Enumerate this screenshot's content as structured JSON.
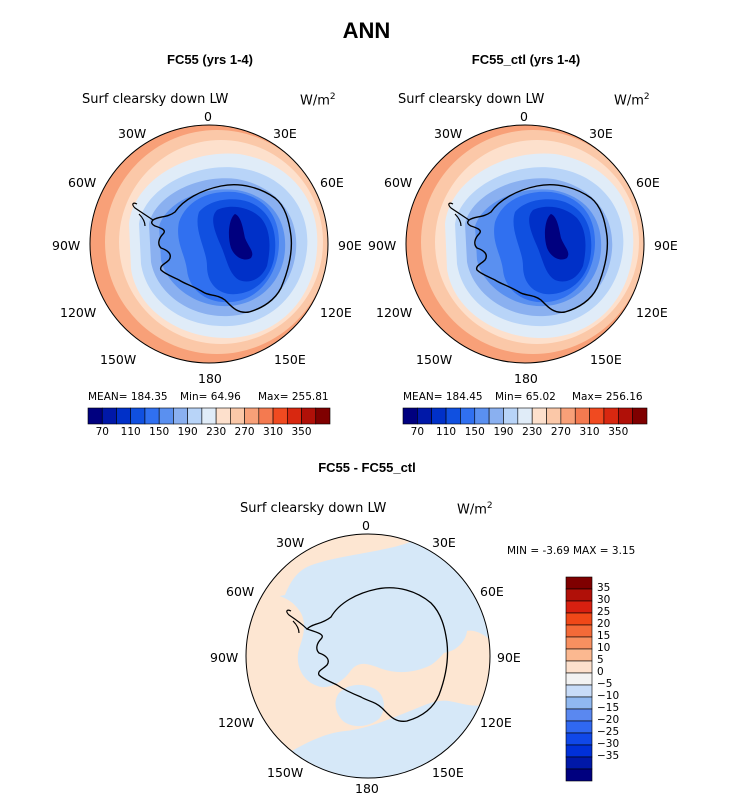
{
  "figure": {
    "title": "ANN"
  },
  "panels": [
    {
      "title": "FC55 (yrs 1-4)",
      "variable": "Surf clearsky down LW",
      "units": "W/m",
      "units_exp": "2",
      "stats": {
        "mean": "MEAN= 184.35",
        "min": "Min=  64.96",
        "max": "Max= 255.81"
      }
    },
    {
      "title": "FC55_ctl (yrs 1-4)",
      "variable": "Surf clearsky down LW",
      "units": "W/m",
      "units_exp": "2",
      "stats": {
        "mean": "MEAN= 184.45",
        "min": "Min=  65.02",
        "max": "Max= 256.16"
      }
    },
    {
      "title": "FC55 - FC55_ctl",
      "variable": "Surf clearsky down LW",
      "units": "W/m",
      "units_exp": "2",
      "stats": {
        "minmax": "MIN =  -3.69  MAX =   3.15"
      }
    }
  ],
  "longitudes": {
    "top": "0",
    "l30": "30W",
    "r30": "30E",
    "l60": "60W",
    "r60": "60E",
    "l90": "90W",
    "r90": "90E",
    "l120": "120W",
    "r120": "120E",
    "l150": "150W",
    "r150": "150E",
    "bottom": "180"
  },
  "colorbar_main": {
    "colors": [
      "#00007f",
      "#0018a8",
      "#0030c8",
      "#1050e0",
      "#3070f0",
      "#5a90f0",
      "#8ab0f0",
      "#b8d4f8",
      "#e0ecf8",
      "#fde0cc",
      "#fbc8a8",
      "#f8a078",
      "#f47a50",
      "#f04a20",
      "#d82810",
      "#b01008",
      "#7f0000"
    ],
    "tick_labels": [
      "70",
      "110",
      "150",
      "190",
      "230",
      "270",
      "310",
      "350"
    ]
  },
  "colorbar_diff": {
    "colors": [
      "#00007f",
      "#0018a8",
      "#0030d8",
      "#1048e8",
      "#3068f0",
      "#5a88f0",
      "#90b8f0",
      "#c8dcf8",
      "#f2f2f2",
      "#fde0cc",
      "#fbb890",
      "#f89060",
      "#f46a38",
      "#f04818",
      "#d82010",
      "#b01008",
      "#7f0000"
    ],
    "tick_labels": [
      "35",
      "30",
      "25",
      "20",
      "15",
      "10",
      "5",
      "0",
      "−5",
      "−10",
      "−15",
      "−20",
      "−25",
      "−30",
      "−35"
    ]
  },
  "colors": {
    "ring_outer": "#f8a078",
    "ring_mid": "#fbc8a8",
    "ring_light": "#fde0cc",
    "neutral": "#e0ecf8",
    "blue1": "#b8d4f8",
    "blue2": "#8ab0f0",
    "blue3": "#5a90f0",
    "blue4": "#3070f0",
    "blue5": "#1050e0",
    "blue6": "#0030c8",
    "diff_pos": "#fde6d2",
    "diff_neg": "#d6e8f8"
  }
}
